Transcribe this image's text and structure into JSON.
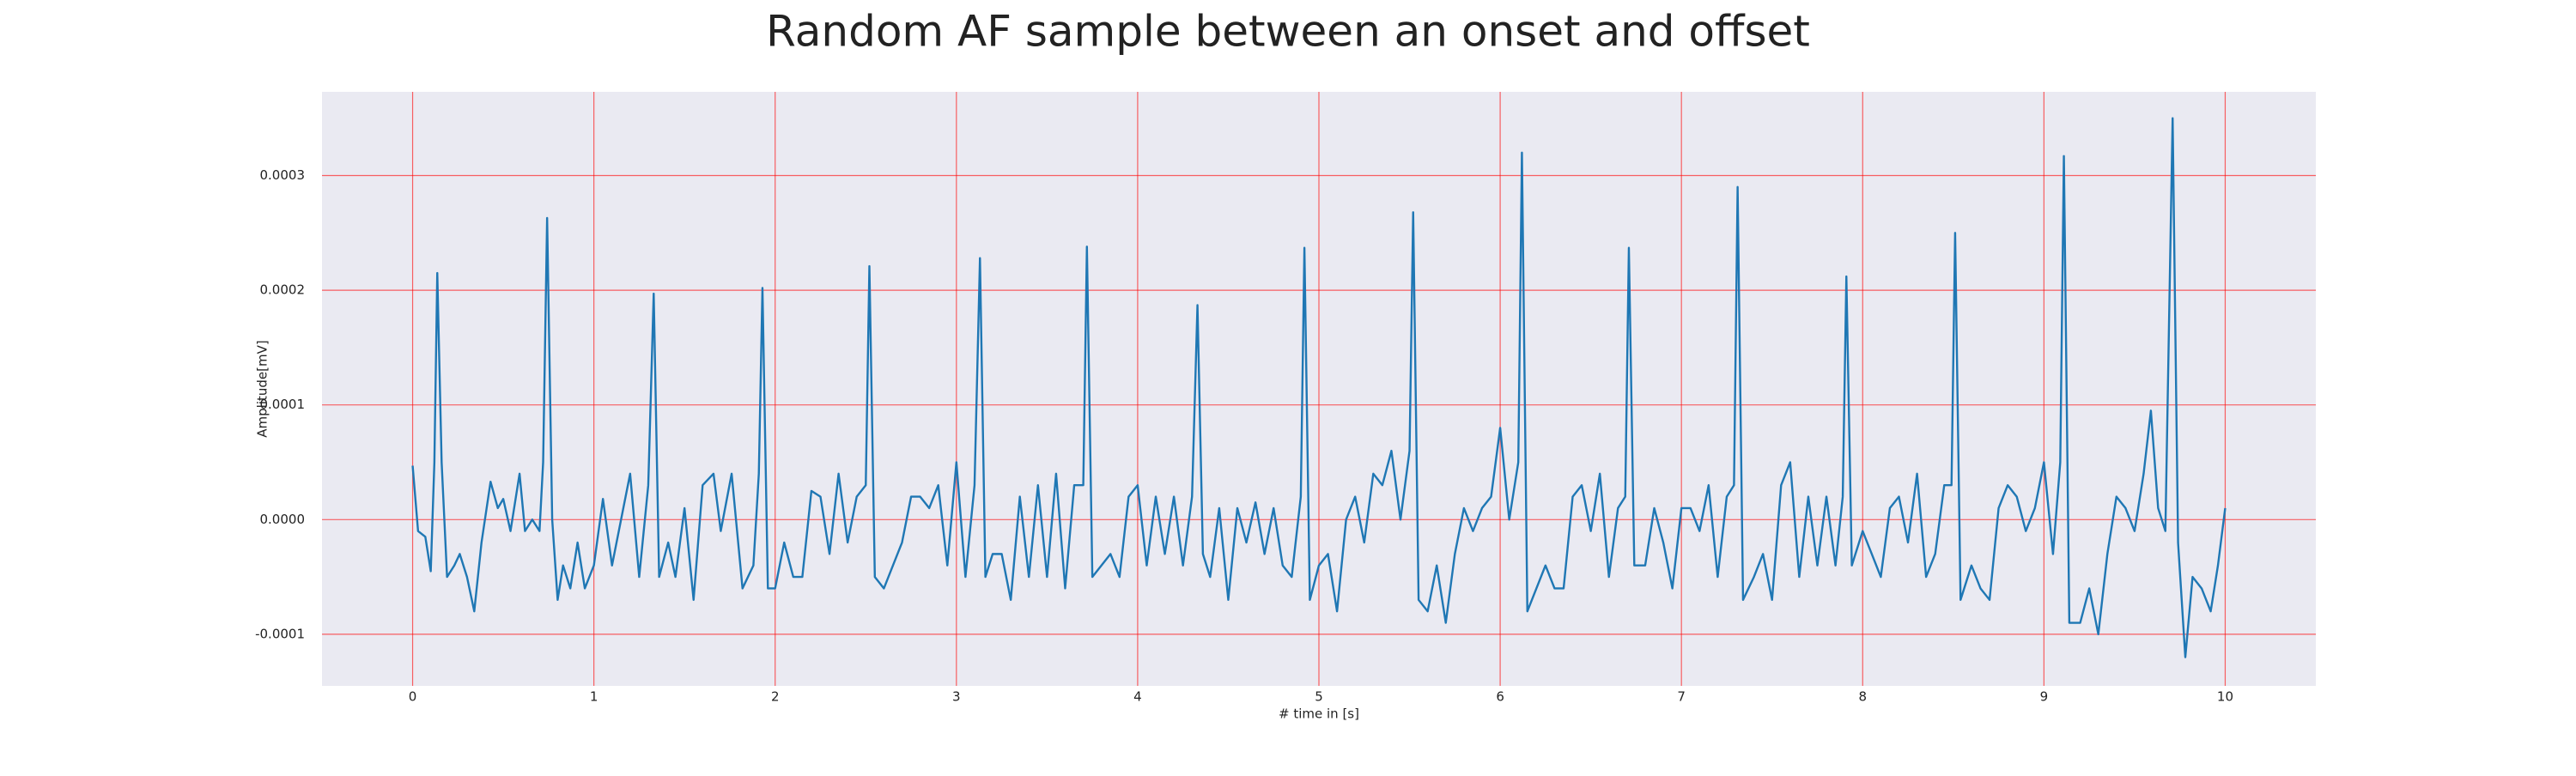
{
  "chart_data": {
    "type": "line",
    "title": "Random AF sample between an onset and offset",
    "xlabel": "# time in [s]",
    "ylabel": "Amplitude[mV]",
    "color": "#1f77b4",
    "grid": true,
    "xlim": [
      -0.5,
      10.5
    ],
    "ylim": [
      -0.000145,
      0.000373
    ],
    "xticks": [
      0,
      1,
      2,
      3,
      4,
      5,
      6,
      7,
      8,
      9,
      10
    ],
    "yticks": [
      -0.0001,
      {
        "value": 0,
        "label": "0.0000"
      },
      0.0001,
      0.0002,
      0.0003
    ],
    "x": [
      0,
      0.03,
      0.07,
      0.1,
      0.12,
      0.136,
      0.16,
      0.19,
      0.23,
      0.26,
      0.3,
      0.34,
      0.38,
      0.43,
      0.47,
      0.5,
      0.54,
      0.59,
      0.62,
      0.66,
      0.7,
      0.72,
      0.742,
      0.77,
      0.8,
      0.83,
      0.87,
      0.91,
      0.95,
      1.0,
      1.05,
      1.1,
      1.15,
      1.2,
      1.25,
      1.3,
      1.33,
      1.36,
      1.41,
      1.45,
      1.5,
      1.55,
      1.6,
      1.66,
      1.7,
      1.76,
      1.82,
      1.88,
      1.91,
      1.93,
      1.96,
      2.0,
      2.05,
      2.1,
      2.15,
      2.2,
      2.25,
      2.3,
      2.35,
      2.4,
      2.45,
      2.5,
      2.52,
      2.55,
      2.6,
      2.65,
      2.7,
      2.75,
      2.8,
      2.85,
      2.9,
      2.95,
      3.0,
      3.05,
      3.1,
      3.13,
      3.16,
      3.2,
      3.25,
      3.3,
      3.35,
      3.4,
      3.45,
      3.5,
      3.55,
      3.6,
      3.65,
      3.7,
      3.72,
      3.75,
      3.8,
      3.85,
      3.9,
      3.95,
      4.0,
      4.05,
      4.1,
      4.15,
      4.2,
      4.25,
      4.3,
      4.33,
      4.36,
      4.4,
      4.45,
      4.5,
      4.55,
      4.6,
      4.65,
      4.7,
      4.75,
      4.8,
      4.85,
      4.9,
      4.92,
      4.95,
      5.0,
      5.05,
      5.1,
      5.15,
      5.2,
      5.25,
      5.3,
      5.35,
      5.4,
      5.45,
      5.5,
      5.52,
      5.55,
      5.6,
      5.65,
      5.7,
      5.75,
      5.8,
      5.85,
      5.9,
      5.95,
      6.0,
      6.05,
      6.1,
      6.12,
      6.15,
      6.2,
      6.25,
      6.3,
      6.35,
      6.4,
      6.45,
      6.5,
      6.55,
      6.6,
      6.65,
      6.69,
      6.71,
      6.74,
      6.8,
      6.85,
      6.9,
      6.95,
      7.0,
      7.05,
      7.1,
      7.15,
      7.2,
      7.25,
      7.29,
      7.31,
      7.34,
      7.4,
      7.45,
      7.5,
      7.55,
      7.6,
      7.65,
      7.7,
      7.75,
      7.8,
      7.85,
      7.89,
      7.91,
      7.94,
      8.0,
      8.05,
      8.1,
      8.15,
      8.2,
      8.25,
      8.3,
      8.35,
      8.4,
      8.45,
      8.49,
      8.51,
      8.54,
      8.6,
      8.65,
      8.7,
      8.75,
      8.8,
      8.85,
      8.9,
      8.95,
      9.0,
      9.05,
      9.09,
      9.11,
      9.14,
      9.2,
      9.25,
      9.3,
      9.35,
      9.4,
      9.45,
      9.5,
      9.55,
      9.59,
      9.63,
      9.67,
      9.71,
      9.74,
      9.78,
      9.82,
      9.87,
      9.92,
      9.96,
      10.0
    ],
    "values": [
      4.7e-05,
      -1e-05,
      -1.5e-05,
      -4.5e-05,
      5e-05,
      0.000215,
      5e-05,
      -5e-05,
      -4e-05,
      -3e-05,
      -5e-05,
      -8e-05,
      -2e-05,
      3.3e-05,
      1e-05,
      1.8e-05,
      -1e-05,
      4e-05,
      -1e-05,
      0,
      -1e-05,
      5e-05,
      0.000263,
      0,
      -7e-05,
      -4e-05,
      -6e-05,
      -2e-05,
      -6e-05,
      -4e-05,
      1.8e-05,
      -4e-05,
      0,
      4e-05,
      -5e-05,
      3e-05,
      0.000197,
      -5e-05,
      -2e-05,
      -5e-05,
      1e-05,
      -7e-05,
      3e-05,
      4e-05,
      -1e-05,
      4e-05,
      -6e-05,
      -4e-05,
      4e-05,
      0.000202,
      -6e-05,
      -6e-05,
      -2e-05,
      -5e-05,
      -5e-05,
      2.5e-05,
      2e-05,
      -3e-05,
      4e-05,
      -2e-05,
      2e-05,
      3e-05,
      0.000221,
      -5e-05,
      -6e-05,
      -4e-05,
      -2e-05,
      2e-05,
      2e-05,
      1e-05,
      3e-05,
      -4e-05,
      5e-05,
      -5e-05,
      3e-05,
      0.000228,
      -5e-05,
      -3e-05,
      -3e-05,
      -7e-05,
      2e-05,
      -5e-05,
      3e-05,
      -5e-05,
      4e-05,
      -6e-05,
      3e-05,
      3e-05,
      0.000238,
      -5e-05,
      -4e-05,
      -3e-05,
      -5e-05,
      2e-05,
      3e-05,
      -4e-05,
      2e-05,
      -3e-05,
      2e-05,
      -4e-05,
      2e-05,
      0.000187,
      -3e-05,
      -5e-05,
      1e-05,
      -7e-05,
      1e-05,
      -2e-05,
      1.5e-05,
      -3e-05,
      1e-05,
      -4e-05,
      -5e-05,
      2e-05,
      0.000237,
      -7e-05,
      -4e-05,
      -3e-05,
      -8e-05,
      0,
      2e-05,
      -2e-05,
      4e-05,
      3e-05,
      6e-05,
      0,
      6e-05,
      0.000268,
      -7e-05,
      -8e-05,
      -4e-05,
      -9e-05,
      -3e-05,
      1e-05,
      -1e-05,
      1e-05,
      2e-05,
      8e-05,
      0,
      5e-05,
      0.00032,
      -8e-05,
      -6e-05,
      -4e-05,
      -6e-05,
      -6e-05,
      2e-05,
      3e-05,
      -1e-05,
      4e-05,
      -5e-05,
      1e-05,
      2e-05,
      0.000237,
      -4e-05,
      -4e-05,
      1e-05,
      -2e-05,
      -6e-05,
      1e-05,
      1e-05,
      -1e-05,
      3e-05,
      -5e-05,
      2e-05,
      3e-05,
      0.00029,
      -7e-05,
      -5e-05,
      -3e-05,
      -7e-05,
      3e-05,
      5e-05,
      -5e-05,
      2e-05,
      -4e-05,
      2e-05,
      -4e-05,
      2e-05,
      0.000212,
      -4e-05,
      -1e-05,
      -3e-05,
      -5e-05,
      1e-05,
      2e-05,
      -2e-05,
      4e-05,
      -5e-05,
      -3e-05,
      3e-05,
      3e-05,
      0.00025,
      -7e-05,
      -4e-05,
      -6e-05,
      -7e-05,
      1e-05,
      3e-05,
      2e-05,
      -1e-05,
      1e-05,
      5e-05,
      -3e-05,
      5e-05,
      0.000317,
      -9e-05,
      -9e-05,
      -6e-05,
      -0.0001,
      -3e-05,
      2e-05,
      1e-05,
      -1e-05,
      4e-05,
      9.5e-05,
      1e-05,
      -1e-05,
      0.00035,
      -2e-05,
      -0.00012,
      -5e-05,
      -6e-05,
      -8e-05,
      -4e-05,
      1e-05
    ]
  }
}
